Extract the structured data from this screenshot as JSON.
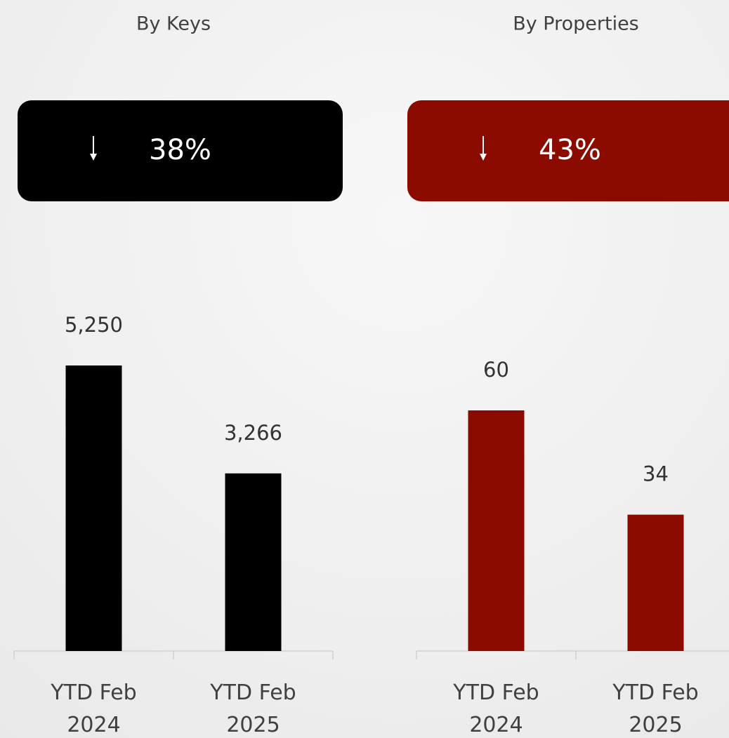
{
  "chart_data": [
    {
      "type": "bar",
      "title": "By Keys",
      "badge": "38%",
      "badge_color": "#000000",
      "categories": [
        "YTD Feb 2024",
        "YTD Feb 2025"
      ],
      "values": [
        5250,
        3266
      ],
      "value_labels": [
        "5,250",
        "3,266"
      ],
      "color": "#000000"
    },
    {
      "type": "bar",
      "title": "By Properties",
      "badge": "43%",
      "badge_color": "#8b0b00",
      "categories": [
        "YTD Feb 2024",
        "YTD Feb 2025"
      ],
      "values": [
        60,
        34
      ],
      "value_labels": [
        "60",
        "34"
      ],
      "color": "#8b0b00"
    }
  ]
}
